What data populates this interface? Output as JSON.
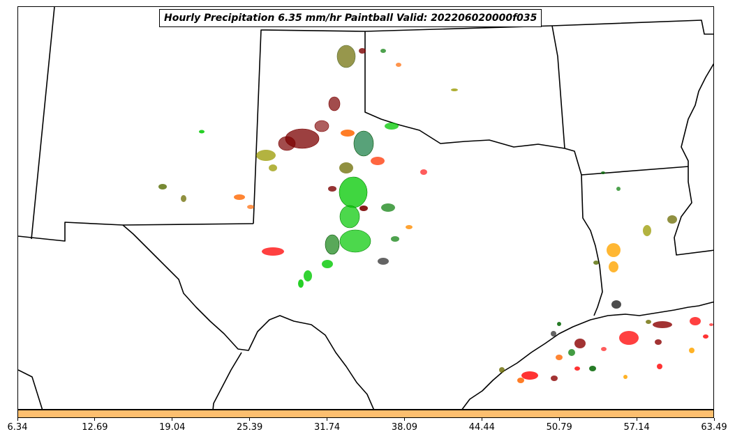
{
  "title": "Hourly Precipitation 6.35 mm/hr Paintball Valid: 202206020000f035",
  "colorbar": {
    "fill_color": "#fdbf6f",
    "ticks": [
      "6.34",
      "12.69",
      "19.04",
      "25.39",
      "31.74",
      "38.09",
      "44.44",
      "50.79",
      "57.14",
      "63.49"
    ]
  },
  "map": {
    "region": "Texas / Southern Plains",
    "border_color": "#000000",
    "member_colors": [
      "#7b0000",
      "#8b4513",
      "#6b8e23",
      "#9acd32",
      "#00c800",
      "#228b22",
      "#ff6600",
      "#ff0000",
      "#ffa500",
      "#556b2f",
      "#000000"
    ]
  }
}
